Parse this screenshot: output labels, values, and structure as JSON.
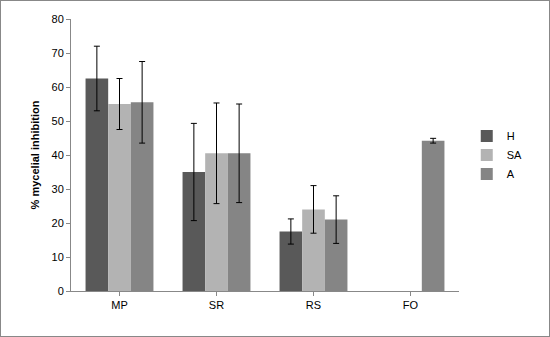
{
  "chart_data": {
    "type": "bar",
    "y_label": "% mycelial inhibition",
    "categories": [
      "MP",
      "SR",
      "RS",
      "FO"
    ],
    "series": [
      {
        "name": "H",
        "color": "#595959",
        "values": [
          62.5,
          35,
          17.5,
          null
        ],
        "errors": [
          9.5,
          14.3,
          3.7,
          null
        ]
      },
      {
        "name": "SA",
        "color": "#b3b3b3",
        "values": [
          55,
          40.5,
          24,
          null
        ],
        "errors": [
          7.5,
          14.8,
          7,
          null
        ]
      },
      {
        "name": "A",
        "color": "#858585",
        "values": [
          55.5,
          40.5,
          21,
          44.2
        ],
        "errors": [
          12,
          14.5,
          7,
          0.7
        ]
      }
    ],
    "ylim": [
      0,
      80
    ],
    "yticks": [
      0,
      10,
      20,
      30,
      40,
      50,
      60,
      70,
      80
    ],
    "grid": false,
    "legend": "right"
  }
}
